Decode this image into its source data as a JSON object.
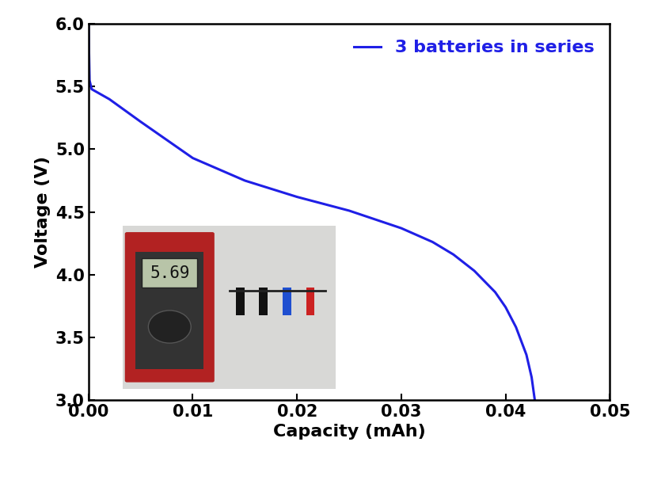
{
  "chart_data": {
    "type": "line",
    "x_label": "Capacity (mAh)",
    "y_label": "Voltage (V)",
    "series": [
      {
        "name": "3 batteries in series",
        "color": "#1f1fe6",
        "x": [
          0.0,
          0.0001,
          0.0003,
          0.002,
          0.005,
          0.01,
          0.015,
          0.02,
          0.025,
          0.03,
          0.033,
          0.035,
          0.037,
          0.039,
          0.04,
          0.041,
          0.042,
          0.0425,
          0.0428
        ],
        "values": [
          6.0,
          5.55,
          5.48,
          5.4,
          5.22,
          4.93,
          4.75,
          4.62,
          4.51,
          4.37,
          4.26,
          4.16,
          4.03,
          3.86,
          3.74,
          3.58,
          3.36,
          3.18,
          3.0
        ]
      }
    ],
    "xlim": [
      0.0,
      0.05
    ],
    "xticks": [
      {
        "value": 0.0,
        "label": "0.00"
      },
      {
        "value": 0.01,
        "label": "0.01"
      },
      {
        "value": 0.02,
        "label": "0.02"
      },
      {
        "value": 0.03,
        "label": "0.03"
      },
      {
        "value": 0.04,
        "label": "0.04"
      },
      {
        "value": 0.05,
        "label": "0.05"
      }
    ],
    "ylim": [
      3.0,
      6.0
    ],
    "yticks": [
      3.0,
      3.5,
      4.0,
      4.5,
      5.0,
      5.5,
      6.0
    ],
    "legend": "upper right",
    "annotations": [
      "5.69"
    ]
  }
}
